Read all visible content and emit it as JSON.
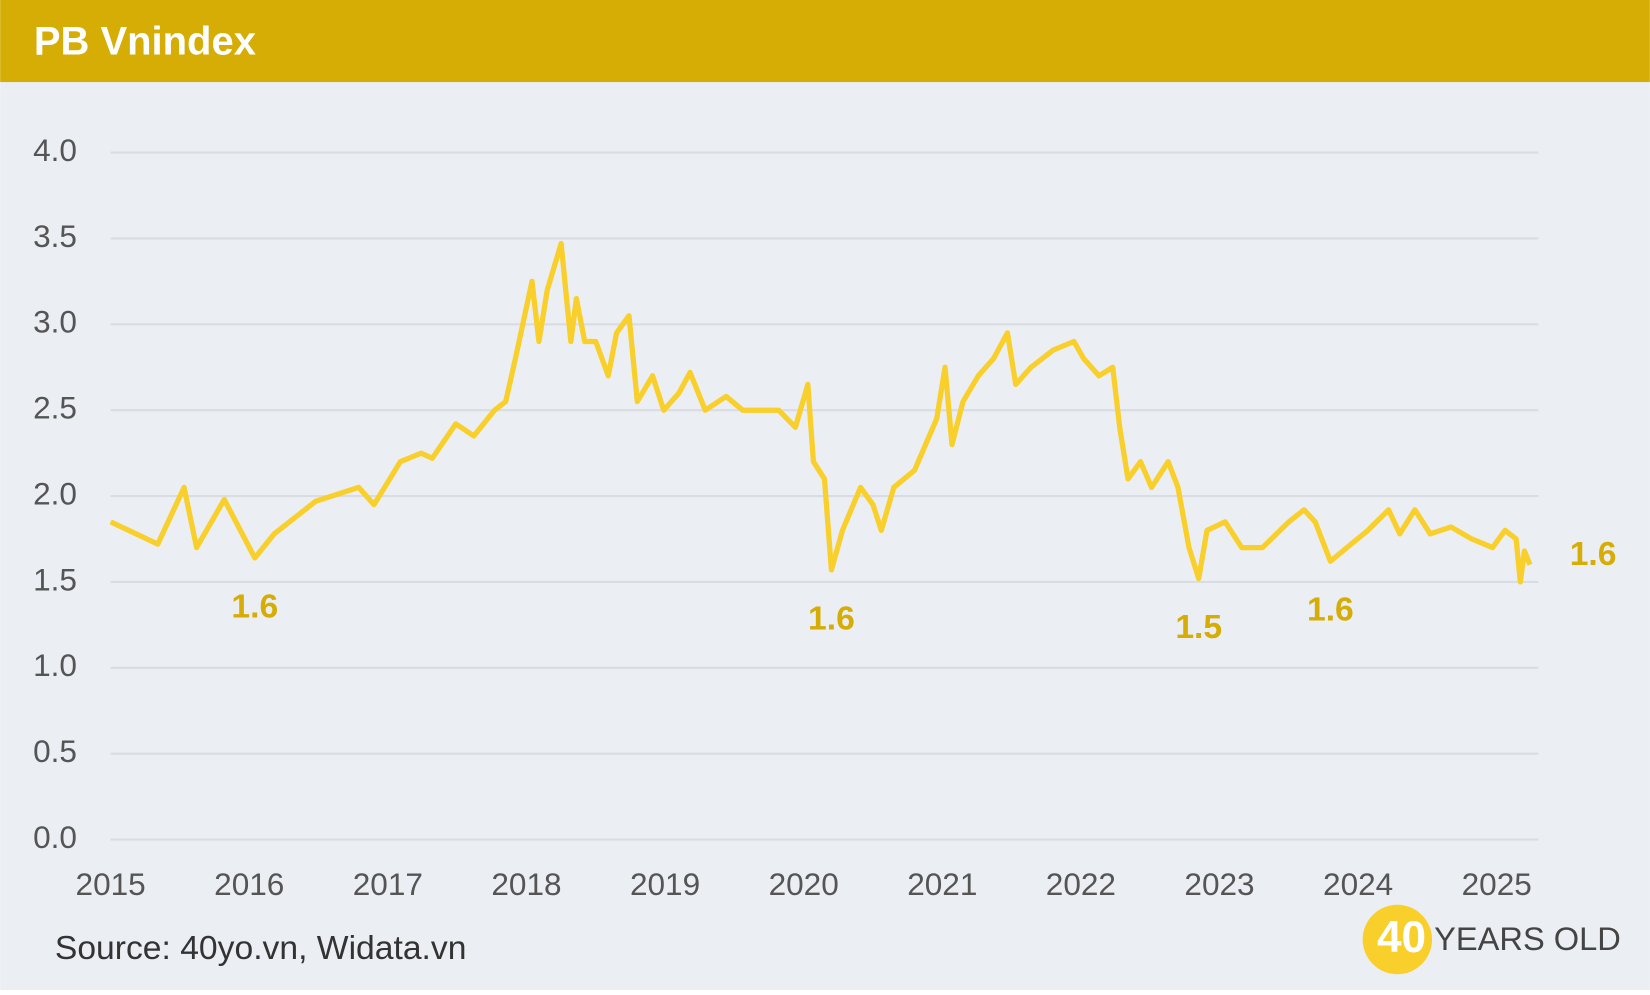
{
  "chart_data": {
    "type": "line",
    "title": "PB Vnindex",
    "x": [
      2015.0,
      2015.34,
      2015.53,
      2015.62,
      2015.82,
      2016.04,
      2016.18,
      2016.48,
      2016.79,
      2016.9,
      2017.09,
      2017.24,
      2017.32,
      2017.49,
      2017.62,
      2017.77,
      2017.85,
      2017.92,
      2018.04,
      2018.09,
      2018.15,
      2018.25,
      2018.32,
      2018.36,
      2018.42,
      2018.5,
      2018.59,
      2018.65,
      2018.74,
      2018.8,
      2018.91,
      2018.99,
      2019.1,
      2019.18,
      2019.29,
      2019.44,
      2019.56,
      2019.67,
      2019.82,
      2019.94,
      2020.03,
      2020.07,
      2020.15,
      2020.2,
      2020.28,
      2020.41,
      2020.5,
      2020.56,
      2020.65,
      2020.8,
      2020.96,
      2021.02,
      2021.07,
      2021.15,
      2021.26,
      2021.37,
      2021.47,
      2021.53,
      2021.64,
      2021.8,
      2021.95,
      2022.02,
      2022.13,
      2022.23,
      2022.28,
      2022.34,
      2022.43,
      2022.51,
      2022.63,
      2022.7,
      2022.78,
      2022.85,
      2022.91,
      2023.04,
      2023.16,
      2023.31,
      2023.5,
      2023.61,
      2023.69,
      2023.8,
      2023.95,
      2024.07,
      2024.22,
      2024.3,
      2024.41,
      2024.52,
      2024.67,
      2024.82,
      2024.97,
      2025.06,
      2025.14,
      2025.17,
      2025.2,
      2025.24
    ],
    "values": [
      1.85,
      1.72,
      2.05,
      1.7,
      1.98,
      1.64,
      1.78,
      1.97,
      2.05,
      1.95,
      2.2,
      2.25,
      2.22,
      2.42,
      2.35,
      2.5,
      2.55,
      2.8,
      3.25,
      2.9,
      3.2,
      3.47,
      2.9,
      3.15,
      2.9,
      2.9,
      2.7,
      2.95,
      3.05,
      2.55,
      2.7,
      2.5,
      2.6,
      2.72,
      2.5,
      2.58,
      2.5,
      2.5,
      2.5,
      2.4,
      2.65,
      2.2,
      2.1,
      1.57,
      1.8,
      2.05,
      1.95,
      1.8,
      2.05,
      2.15,
      2.45,
      2.75,
      2.3,
      2.55,
      2.7,
      2.8,
      2.95,
      2.65,
      2.75,
      2.85,
      2.9,
      2.8,
      2.7,
      2.75,
      2.4,
      2.1,
      2.2,
      2.05,
      2.2,
      2.05,
      1.7,
      1.52,
      1.8,
      1.85,
      1.7,
      1.7,
      1.85,
      1.92,
      1.85,
      1.62,
      1.72,
      1.8,
      1.92,
      1.78,
      1.92,
      1.78,
      1.82,
      1.75,
      1.7,
      1.8,
      1.75,
      1.5,
      1.68,
      1.6
    ],
    "color": "#F9CF2B",
    "xlim": [
      2015,
      2025.3
    ],
    "xticks": [
      2015,
      2016,
      2017,
      2018,
      2019,
      2020,
      2021,
      2022,
      2023,
      2024,
      2025
    ],
    "ylim": [
      0,
      4
    ],
    "yticks": [
      {
        "value": 0,
        "label": "0.0"
      },
      0.5,
      {
        "value": 1,
        "label": "1.0"
      },
      1.5,
      {
        "value": 2,
        "label": "2.0"
      },
      2.5,
      {
        "value": 3,
        "label": "3.0"
      },
      3.5,
      {
        "value": 4,
        "label": "4.0"
      }
    ],
    "grid": true,
    "annotations": [
      {
        "x": 2016.04,
        "y": 1.64,
        "label": "1.6"
      },
      {
        "x": 2020.2,
        "y": 1.57,
        "label": "1.6"
      },
      {
        "x": 2022.85,
        "y": 1.52,
        "label": "1.5"
      },
      {
        "x": 2023.8,
        "y": 1.62,
        "label": "1.6"
      },
      {
        "x": 2025.24,
        "y": 1.6,
        "label": "1.6"
      }
    ],
    "source": "Source: 40yo.vn, Widata.vn",
    "logo": {
      "number": "40",
      "text": "YEARS OLD"
    }
  }
}
